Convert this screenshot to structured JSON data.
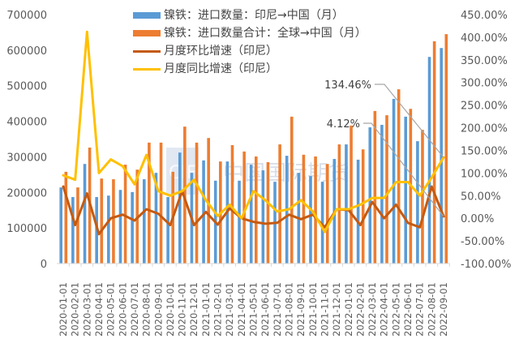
{
  "chart_data": {
    "type": "bar",
    "title": "",
    "xlabel": "",
    "ylabel": "",
    "ylabel_right": "",
    "ylim": [
      0,
      700000
    ],
    "ylim_right": [
      -100,
      450
    ],
    "grid": false,
    "legend_position": "top-center",
    "left_ticks": [
      "0",
      "100000",
      "200000",
      "300000",
      "400000",
      "500000",
      "600000",
      "700000"
    ],
    "right_ticks": [
      "-100.00%",
      "-50.00%",
      "0.00%",
      "50.00%",
      "100.00%",
      "150.00%",
      "200.00%",
      "250.00%",
      "300.00%",
      "350.00%",
      "400.00%",
      "450.00%"
    ],
    "categories": [
      "2020-01-01",
      "2020-02-01",
      "2020-03-01",
      "2020-04-01",
      "2020-05-01",
      "2020-06-01",
      "2020-07-01",
      "2020-08-01",
      "2020-09-01",
      "2020-10-01",
      "2020-11-01",
      "2020-12-01",
      "2021-01-01",
      "2021-02-01",
      "2021-03-01",
      "2021-04-01",
      "2021-05-01",
      "2021-06-01",
      "2021-07-01",
      "2021-08-01",
      "2021-09-01",
      "2021-10-01",
      "2021-11-01",
      "2021-12-01",
      "2022-01-01",
      "2022-02-01",
      "2022-03-01",
      "2022-04-01",
      "2022-05-01",
      "2022-06-01",
      "2022-07-01",
      "2022-08-01",
      "2022-09-01"
    ],
    "series": [
      {
        "name": "镍铁：进口数量：印尼→中国（月）",
        "type": "bar",
        "axis": "left",
        "color": "#5B9BD5",
        "values": [
          214000,
          187000,
          280000,
          187000,
          191000,
          207000,
          201000,
          237000,
          255000,
          187000,
          312000,
          255000,
          290000,
          233000,
          287000,
          233000,
          278000,
          262000,
          230000,
          303000,
          255000,
          246000,
          230000,
          294000,
          335000,
          292000,
          383000,
          390000,
          463000,
          413000,
          344000,
          581000,
          606000
        ]
      },
      {
        "name": "镍铁：进口数量合计：全球→中国（月）",
        "type": "bar",
        "axis": "left",
        "color": "#ED7D31",
        "values": [
          258000,
          214000,
          326000,
          239000,
          237000,
          278000,
          264000,
          340000,
          340000,
          258000,
          385000,
          340000,
          353000,
          287000,
          333000,
          315000,
          301000,
          285000,
          335000,
          413000,
          306000,
          301000,
          280000,
          335000,
          388000,
          321000,
          429000,
          417000,
          490000,
          435000,
          376000,
          625000,
          645000
        ]
      },
      {
        "name": "月度环比增速（印尼）",
        "type": "line",
        "axis": "right",
        "color": "#C55A11",
        "values": [
          70,
          -15,
          55,
          -35,
          0,
          8,
          -5,
          20,
          10,
          -15,
          60,
          -15,
          14,
          -14,
          22,
          0,
          -8,
          -12,
          -10,
          8,
          -2,
          8,
          -20,
          20,
          18,
          -15,
          36,
          0,
          30,
          -10,
          -20,
          70,
          4.12
        ]
      },
      {
        "name": "月度同比增速（印尼）",
        "type": "line",
        "axis": "right",
        "color": "#FFC000",
        "values": [
          95,
          85,
          412,
          100,
          130,
          115,
          75,
          140,
          60,
          50,
          60,
          85,
          40,
          5,
          30,
          0,
          60,
          40,
          15,
          20,
          40,
          15,
          -30,
          20,
          20,
          30,
          45,
          45,
          80,
          80,
          50,
          90,
          134.46
        ]
      }
    ],
    "annotations": [
      {
        "text": "134.46%",
        "series": "月度同比增速（印尼）",
        "category": "2022-09-01"
      },
      {
        "text": "4.12%",
        "series": "月度环比增速（印尼）",
        "category": "2022-09-01"
      }
    ],
    "watermark": "CIFCO 中国国际期货"
  },
  "legend": {
    "items": [
      {
        "label": "镍铁：进口数量：印尼→中国（月）",
        "color": "#5B9BD5"
      },
      {
        "label": "镍铁：进口数量合计：全球→中国（月）",
        "color": "#ED7D31"
      },
      {
        "label": "月度环比增速（印尼）",
        "color": "#C55A11"
      },
      {
        "label": "月度同比增速（印尼）",
        "color": "#FFC000"
      }
    ]
  },
  "annotations": {
    "yoy_label": "134.46%",
    "mom_label": "4.12%"
  }
}
